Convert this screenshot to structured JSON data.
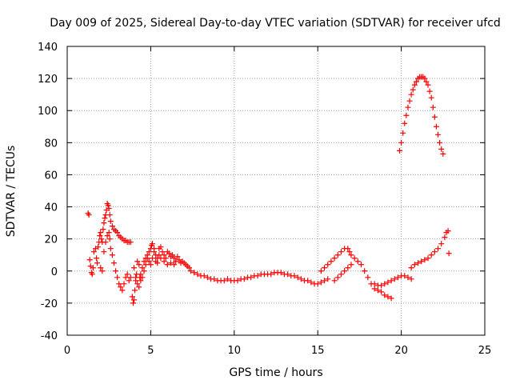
{
  "chart_data": {
    "type": "scatter",
    "title": "Day 009 of 2025, Sidereal Day-to-day VTEC variation (SDTVAR) for receiver ufcd",
    "xlabel": "GPS time / hours",
    "ylabel": "SDTVAR / TECUs",
    "xlim": [
      0,
      25
    ],
    "ylim": [
      -40,
      140
    ],
    "xticks": [
      0,
      5,
      10,
      15,
      20,
      25
    ],
    "yticks": [
      -40,
      -20,
      0,
      20,
      40,
      60,
      80,
      100,
      120,
      140
    ],
    "xtick_labels": [
      "0",
      "5",
      "10",
      "15",
      "20",
      "25"
    ],
    "ytick_labels": [
      "-40",
      "-20",
      "0",
      "20",
      "40",
      "60",
      "80",
      "100",
      "120",
      "140"
    ],
    "grid": true,
    "marker": "+",
    "color": "#ff0000",
    "series": [
      {
        "name": "SDTVAR",
        "points": [
          [
            1.25,
            36
          ],
          [
            1.3,
            35
          ],
          [
            1.35,
            7
          ],
          [
            1.4,
            3
          ],
          [
            1.45,
            -1
          ],
          [
            1.5,
            -2
          ],
          [
            1.55,
            2
          ],
          [
            1.6,
            12
          ],
          [
            1.7,
            14
          ],
          [
            1.75,
            8
          ],
          [
            1.8,
            5
          ],
          [
            1.85,
            15
          ],
          [
            1.9,
            18
          ],
          [
            1.95,
            22
          ],
          [
            2.0,
            24
          ],
          [
            2.05,
            20
          ],
          [
            2.1,
            18
          ],
          [
            2.15,
            26
          ],
          [
            2.2,
            30
          ],
          [
            2.25,
            33
          ],
          [
            2.3,
            35
          ],
          [
            2.35,
            38
          ],
          [
            2.4,
            42
          ],
          [
            2.45,
            41
          ],
          [
            2.5,
            39
          ],
          [
            2.55,
            35
          ],
          [
            2.6,
            31
          ],
          [
            2.7,
            28
          ],
          [
            2.8,
            26
          ],
          [
            2.9,
            25
          ],
          [
            3.0,
            24
          ],
          [
            3.1,
            22
          ],
          [
            3.2,
            21
          ],
          [
            3.3,
            20
          ],
          [
            3.4,
            19
          ],
          [
            3.5,
            19
          ],
          [
            3.6,
            18
          ],
          [
            3.7,
            18
          ],
          [
            3.8,
            18
          ],
          [
            2.0,
            2
          ],
          [
            2.1,
            0
          ],
          [
            2.2,
            12
          ],
          [
            2.3,
            18
          ],
          [
            2.4,
            22
          ],
          [
            2.5,
            24
          ],
          [
            2.55,
            20
          ],
          [
            2.6,
            14
          ],
          [
            2.7,
            10
          ],
          [
            2.8,
            5
          ],
          [
            2.9,
            0
          ],
          [
            3.0,
            -4
          ],
          [
            3.1,
            -8
          ],
          [
            3.2,
            -10
          ],
          [
            3.3,
            -12
          ],
          [
            3.4,
            -8
          ],
          [
            3.5,
            -4
          ],
          [
            3.6,
            -2
          ],
          [
            3.7,
            -6
          ],
          [
            3.8,
            -4
          ],
          [
            3.9,
            -16
          ],
          [
            3.95,
            -20
          ],
          [
            4.0,
            -18
          ],
          [
            4.05,
            -12
          ],
          [
            4.1,
            -6
          ],
          [
            4.15,
            -2
          ],
          [
            4.2,
            6
          ],
          [
            4.3,
            4
          ],
          [
            4.35,
            -4
          ],
          [
            4.4,
            -2
          ],
          [
            4.5,
            2
          ],
          [
            4.6,
            6
          ],
          [
            4.7,
            8
          ],
          [
            4.8,
            10
          ],
          [
            4.9,
            12
          ],
          [
            5.0,
            14
          ],
          [
            5.05,
            16
          ],
          [
            5.1,
            17
          ],
          [
            5.2,
            14
          ],
          [
            5.3,
            10
          ],
          [
            5.4,
            8
          ],
          [
            5.5,
            14
          ],
          [
            5.6,
            15
          ],
          [
            5.7,
            12
          ],
          [
            5.8,
            10
          ],
          [
            5.9,
            8
          ],
          [
            6.0,
            12
          ],
          [
            6.1,
            11
          ],
          [
            6.2,
            9
          ],
          [
            6.3,
            10
          ],
          [
            6.4,
            8
          ],
          [
            6.5,
            6
          ],
          [
            6.6,
            9
          ],
          [
            6.7,
            7
          ],
          [
            6.8,
            5
          ],
          [
            6.9,
            6
          ],
          [
            7.0,
            5
          ],
          [
            7.1,
            4
          ],
          [
            7.2,
            3
          ],
          [
            7.3,
            2
          ],
          [
            4.0,
            2
          ],
          [
            4.1,
            -4
          ],
          [
            4.2,
            -8
          ],
          [
            4.3,
            -10
          ],
          [
            4.4,
            -6
          ],
          [
            4.5,
            -4
          ],
          [
            4.6,
            0
          ],
          [
            4.7,
            4
          ],
          [
            4.8,
            8
          ],
          [
            4.9,
            6
          ],
          [
            5.0,
            4
          ],
          [
            5.1,
            8
          ],
          [
            5.2,
            12
          ],
          [
            5.3,
            6
          ],
          [
            5.4,
            5
          ],
          [
            5.5,
            10
          ],
          [
            5.6,
            8
          ],
          [
            5.8,
            6
          ],
          [
            6.0,
            4
          ],
          [
            6.2,
            5
          ],
          [
            6.4,
            4
          ],
          [
            7.4,
            0
          ],
          [
            7.6,
            -1
          ],
          [
            7.8,
            -2
          ],
          [
            8.0,
            -3
          ],
          [
            8.2,
            -3
          ],
          [
            8.4,
            -4
          ],
          [
            8.6,
            -5
          ],
          [
            8.8,
            -5
          ],
          [
            9.0,
            -6
          ],
          [
            9.2,
            -6
          ],
          [
            9.4,
            -6
          ],
          [
            9.6,
            -5
          ],
          [
            9.8,
            -6
          ],
          [
            10.0,
            -6
          ],
          [
            10.2,
            -6
          ],
          [
            10.4,
            -5
          ],
          [
            10.6,
            -5
          ],
          [
            10.8,
            -4
          ],
          [
            11.0,
            -4
          ],
          [
            11.2,
            -3
          ],
          [
            11.4,
            -3
          ],
          [
            11.6,
            -2
          ],
          [
            11.8,
            -2
          ],
          [
            12.0,
            -2
          ],
          [
            12.2,
            -2
          ],
          [
            12.4,
            -1
          ],
          [
            12.6,
            -1
          ],
          [
            12.8,
            -1
          ],
          [
            13.0,
            -2
          ],
          [
            13.2,
            -2
          ],
          [
            13.4,
            -3
          ],
          [
            13.6,
            -3
          ],
          [
            13.8,
            -4
          ],
          [
            14.0,
            -5
          ],
          [
            14.2,
            -6
          ],
          [
            14.4,
            -6
          ],
          [
            14.6,
            -7
          ],
          [
            14.8,
            -8
          ],
          [
            15.0,
            -8
          ],
          [
            15.2,
            -7
          ],
          [
            15.4,
            -6
          ],
          [
            15.6,
            -5
          ],
          [
            15.2,
            0
          ],
          [
            15.4,
            2
          ],
          [
            15.6,
            4
          ],
          [
            15.8,
            6
          ],
          [
            16.0,
            8
          ],
          [
            16.2,
            10
          ],
          [
            16.4,
            12
          ],
          [
            16.6,
            14
          ],
          [
            16.8,
            14
          ],
          [
            16.9,
            12
          ],
          [
            17.0,
            10
          ],
          [
            16.0,
            -6
          ],
          [
            16.2,
            -4
          ],
          [
            16.4,
            -2
          ],
          [
            16.6,
            0
          ],
          [
            16.8,
            2
          ],
          [
            17.0,
            4
          ],
          [
            17.2,
            8
          ],
          [
            17.4,
            6
          ],
          [
            17.6,
            4
          ],
          [
            17.8,
            0
          ],
          [
            18.0,
            -4
          ],
          [
            18.2,
            -8
          ],
          [
            18.4,
            -11
          ],
          [
            18.6,
            -12
          ],
          [
            18.8,
            -13
          ],
          [
            19.0,
            -15
          ],
          [
            19.2,
            -16
          ],
          [
            19.4,
            -17
          ],
          [
            18.4,
            -8
          ],
          [
            18.6,
            -9
          ],
          [
            18.8,
            -9
          ],
          [
            19.0,
            -8
          ],
          [
            19.2,
            -7
          ],
          [
            19.4,
            -6
          ],
          [
            19.6,
            -5
          ],
          [
            19.8,
            -4
          ],
          [
            20.0,
            -3
          ],
          [
            20.2,
            -3
          ],
          [
            20.4,
            -4
          ],
          [
            20.6,
            -5
          ],
          [
            20.6,
            2
          ],
          [
            20.8,
            4
          ],
          [
            21.0,
            5
          ],
          [
            21.2,
            6
          ],
          [
            21.4,
            7
          ],
          [
            21.6,
            8
          ],
          [
            21.8,
            10
          ],
          [
            22.0,
            12
          ],
          [
            22.2,
            14
          ],
          [
            22.4,
            17
          ],
          [
            22.6,
            21
          ],
          [
            22.7,
            24
          ],
          [
            22.8,
            25
          ],
          [
            22.85,
            11
          ],
          [
            19.9,
            75
          ],
          [
            20.0,
            80
          ],
          [
            20.1,
            86
          ],
          [
            20.2,
            92
          ],
          [
            20.3,
            97
          ],
          [
            20.4,
            102
          ],
          [
            20.5,
            106
          ],
          [
            20.6,
            110
          ],
          [
            20.7,
            113
          ],
          [
            20.8,
            116
          ],
          [
            20.9,
            118
          ],
          [
            21.0,
            120
          ],
          [
            21.1,
            121
          ],
          [
            21.2,
            121
          ],
          [
            21.3,
            121
          ],
          [
            21.4,
            120
          ],
          [
            21.5,
            118
          ],
          [
            21.6,
            116
          ],
          [
            21.7,
            112
          ],
          [
            21.8,
            108
          ],
          [
            21.9,
            102
          ],
          [
            22.0,
            96
          ],
          [
            22.1,
            90
          ],
          [
            22.2,
            85
          ],
          [
            22.3,
            80
          ],
          [
            22.4,
            76
          ],
          [
            22.5,
            73
          ]
        ]
      }
    ]
  }
}
